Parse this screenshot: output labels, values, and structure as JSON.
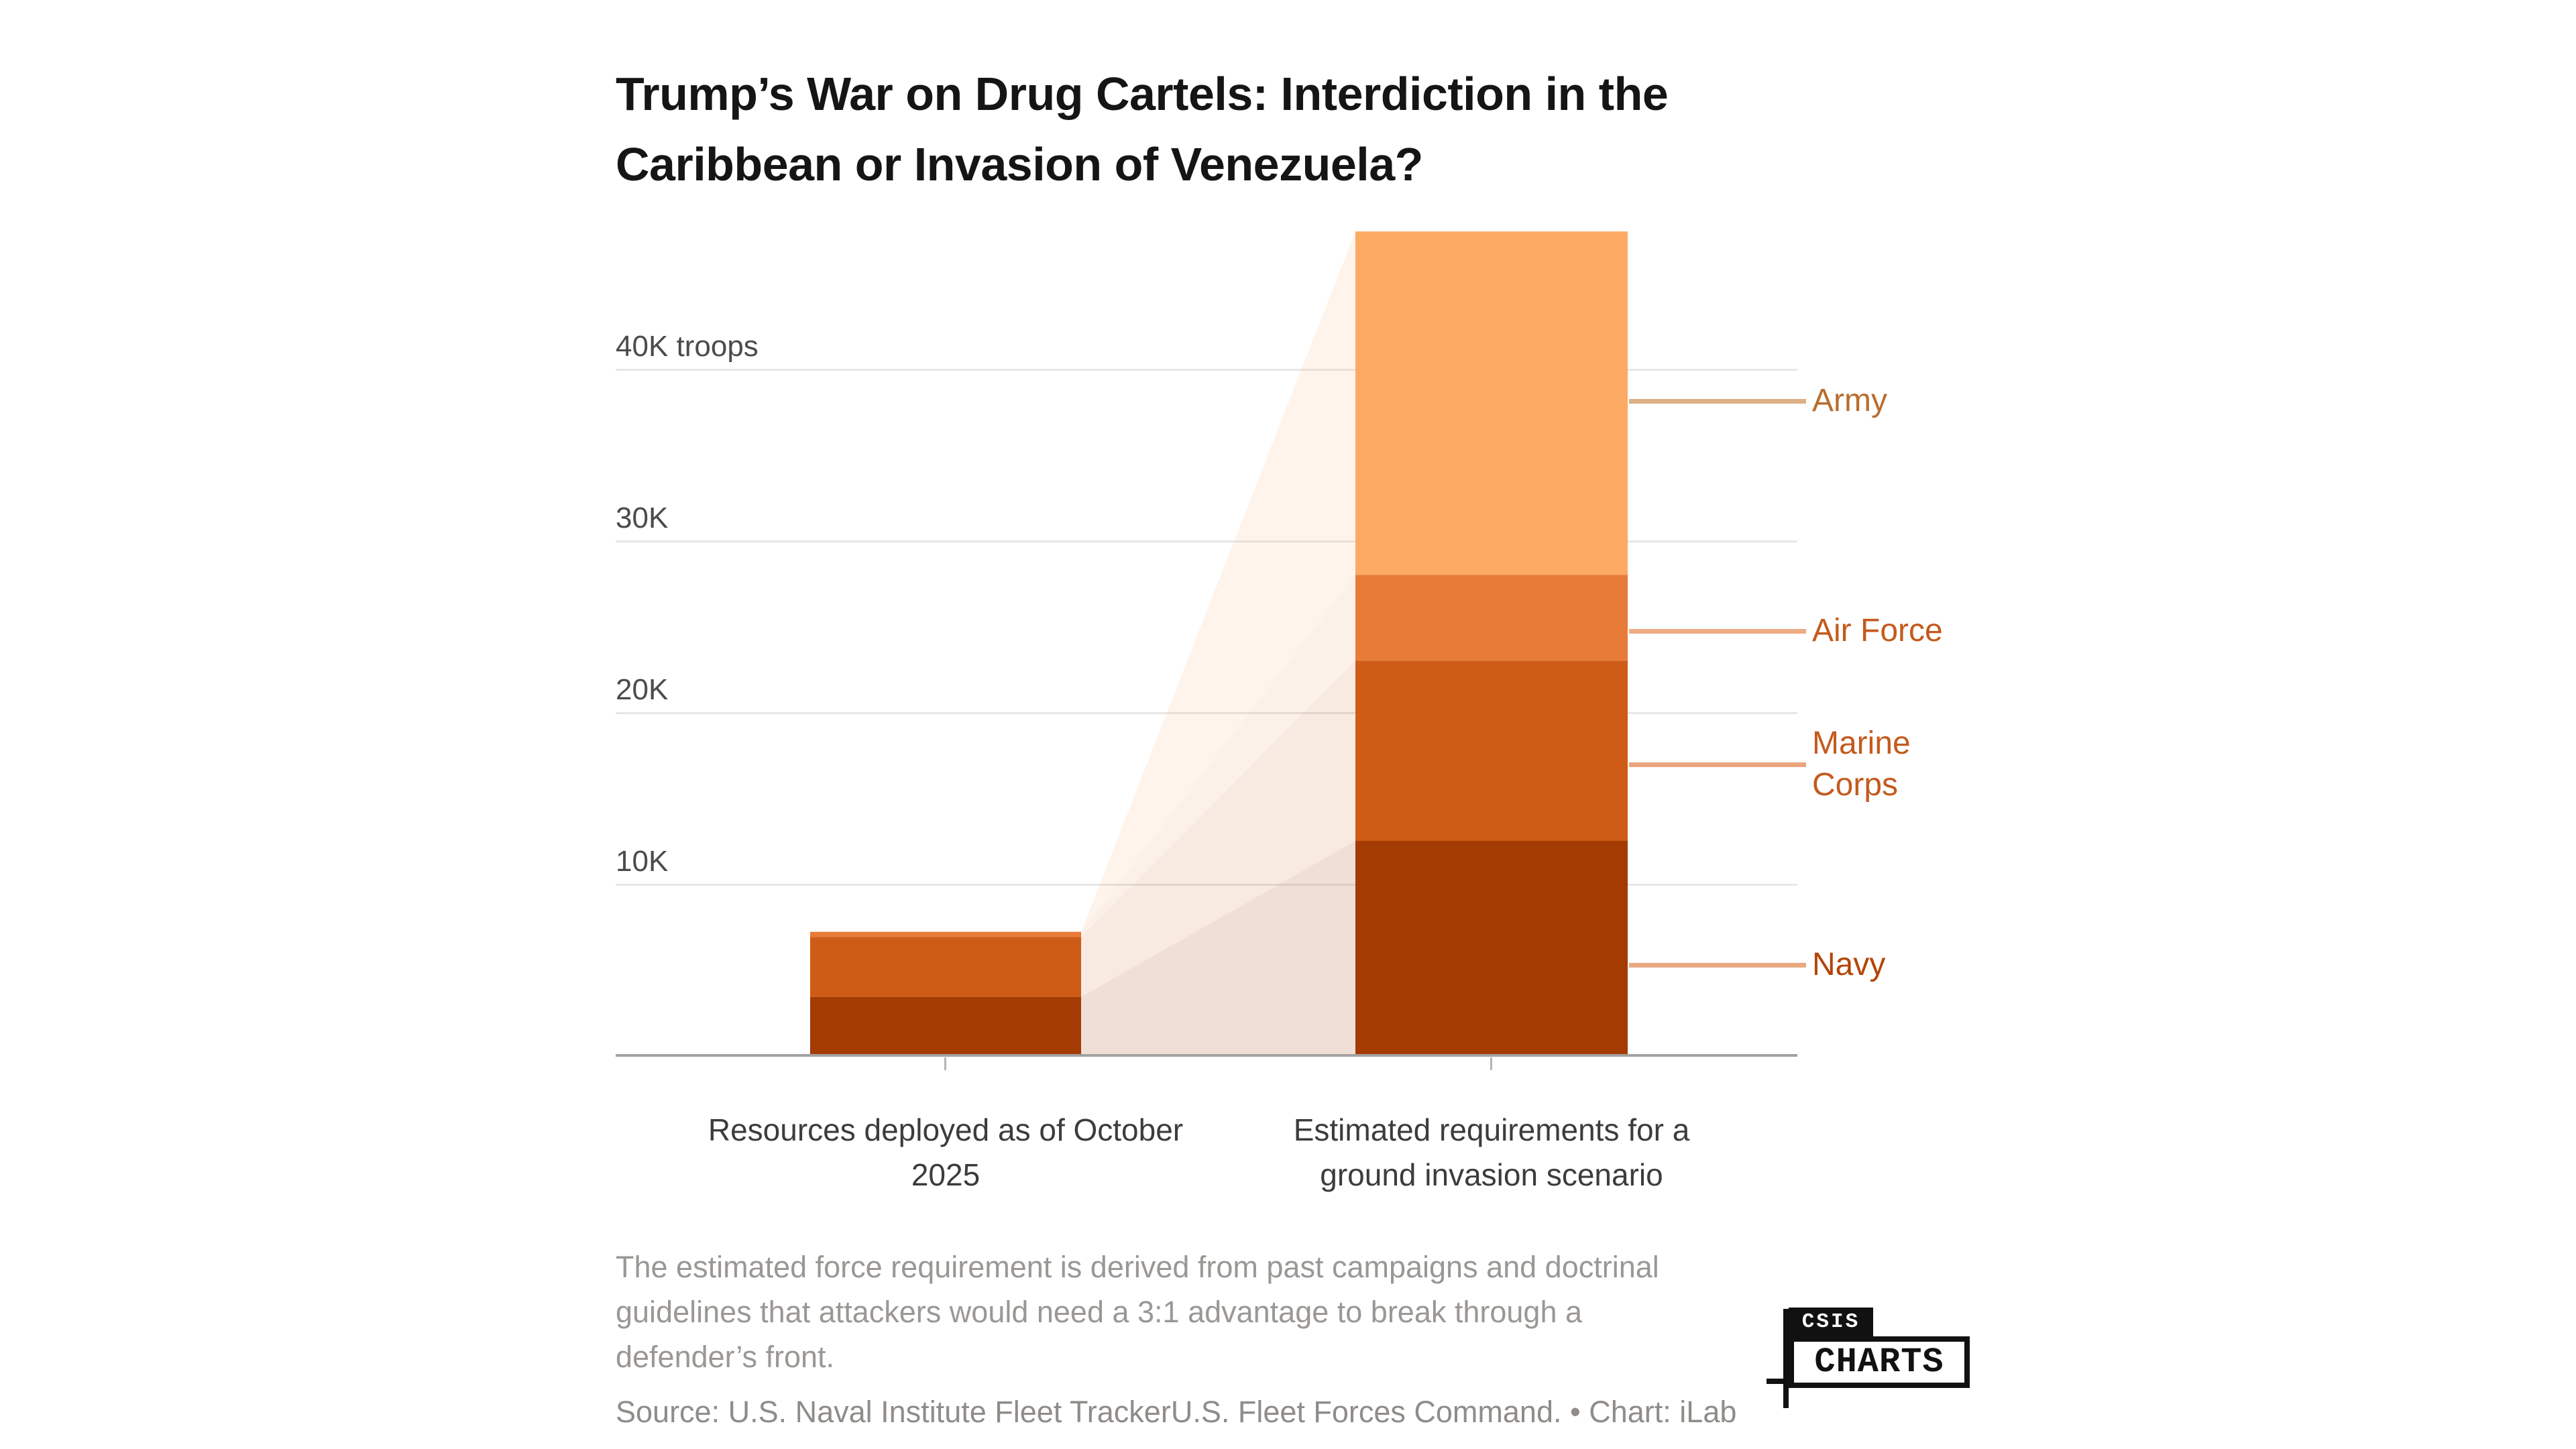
{
  "header": {
    "title_lines": [
      "Trump’s War on Drug Cartels: Interdiction in the",
      "Caribbean or Invasion of Venezuela?"
    ]
  },
  "chart_data": {
    "type": "bar",
    "stacked": true,
    "unit_label": "troops",
    "y_axis": {
      "min": 0,
      "max_shown": 48000,
      "gridlines": true,
      "ticks": [
        {
          "value": 40000,
          "label": "40K troops"
        },
        {
          "value": 30000,
          "label": "30K"
        },
        {
          "value": 20000,
          "label": "20K"
        },
        {
          "value": 10000,
          "label": "10K"
        }
      ]
    },
    "categories": [
      {
        "label": "Resources deployed as of October 2025",
        "label_lines": [
          "Resources deployed as of October",
          "2025"
        ]
      },
      {
        "label": "Estimated requirements for a ground invasion scenario",
        "label_lines": [
          "Estimated requirements for a",
          "ground invasion scenario"
        ]
      }
    ],
    "series": [
      {
        "name": "Navy",
        "values": [
          3400,
          12500
        ],
        "color": "#A43B02",
        "label_color": "#B24508",
        "leader_color": "#E9A981"
      },
      {
        "name": "Marine Corps",
        "values": [
          3500,
          10500
        ],
        "color": "#CE5C17",
        "label_color": "#C45A1D",
        "leader_color": "#EBA57E"
      },
      {
        "name": "Air Force",
        "values": [
          300,
          5000
        ],
        "color": "#E87B38",
        "label_color": "#C45A1D",
        "leader_color": "#EFAC83"
      },
      {
        "name": "Army",
        "values": [
          0,
          20000
        ],
        "color": "#FCAA64",
        "label_color": "#B86D2E",
        "leader_color": "#DDB085"
      }
    ],
    "legend_position": "right",
    "connector_band": true
  },
  "note": {
    "lines": [
      "The estimated force requirement is derived from past campaigns and doctrinal",
      "guidelines that attackers would need a 3:1 advantage to break through a",
      "defender’s front."
    ]
  },
  "source": {
    "text": "Source: U.S. Naval Institute Fleet TrackerU.S. Fleet Forces Command. • Chart: iLab"
  },
  "logo": {
    "top": "CSIS",
    "bottom": "CHARTS"
  }
}
